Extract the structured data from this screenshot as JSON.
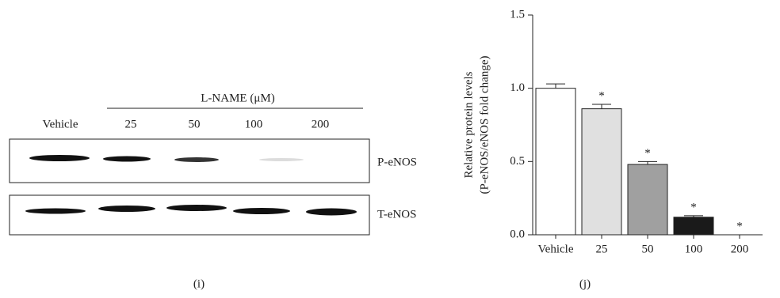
{
  "blot": {
    "treatment_label": "L-NAME (μM)",
    "lanes": [
      "Vehicle",
      "25",
      "50",
      "100",
      "200"
    ],
    "rows": [
      "P-eNOS",
      "T-eNOS"
    ],
    "panel_label": "(i)"
  },
  "chart_data": {
    "type": "bar",
    "panel_label": "(j)",
    "ylabel": [
      "Relative protein levels",
      "(P-eNOS/eNOS fold change)"
    ],
    "categories": [
      "Vehicle",
      "25",
      "50",
      "100",
      "200"
    ],
    "values": [
      1.0,
      0.86,
      0.48,
      0.12,
      0.0
    ],
    "errors": [
      0.03,
      0.03,
      0.02,
      0.01,
      0.0
    ],
    "colors": [
      "#ffffff",
      "#e0e0e0",
      "#a0a0a0",
      "#1a1a1a",
      "#ffffff"
    ],
    "significance": [
      null,
      "*",
      "*",
      "*",
      "*"
    ],
    "ylim": [
      0,
      1.5
    ],
    "yticks": [
      {
        "value": 0,
        "label": "0.0"
      },
      {
        "value": 0.5,
        "label": "0.5"
      },
      {
        "value": 1,
        "label": "1.0"
      },
      {
        "value": 1.5,
        "label": "1.5"
      }
    ]
  }
}
